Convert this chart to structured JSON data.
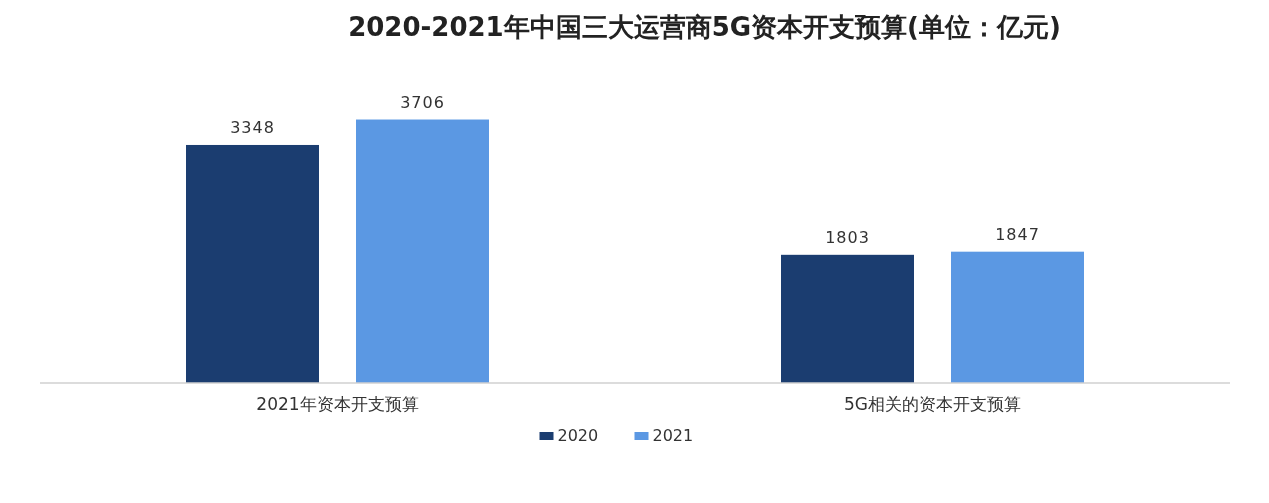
{
  "chart_data": {
    "type": "bar",
    "title": "2020-2021年中国三大运营商5G资本开支预算(单位：亿元)",
    "categories": [
      "2021年资本开支预算",
      "5G相关的资本开支预算"
    ],
    "series": [
      {
        "name": "2020",
        "color": "#1b3d70",
        "values": [
          3348,
          1803
        ]
      },
      {
        "name": "2021",
        "color": "#5b98e3",
        "values": [
          3706,
          1847
        ]
      }
    ],
    "data_labels": true,
    "legend": "bottom"
  }
}
